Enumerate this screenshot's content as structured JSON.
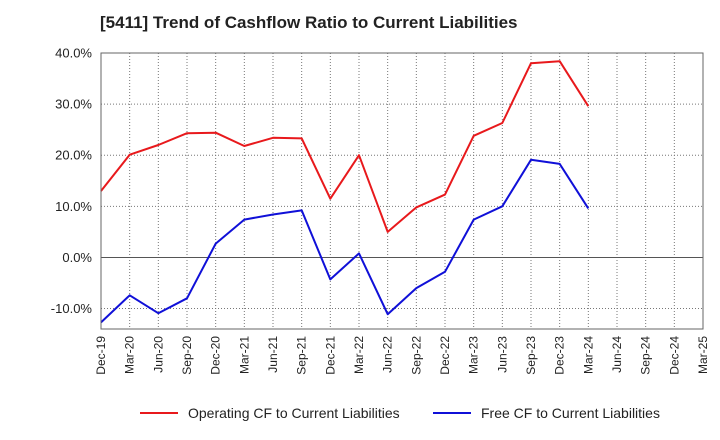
{
  "chart_data": {
    "type": "line",
    "title": "[5411]  Trend of Cashflow Ratio to Current Liabilities",
    "x": [
      "Dec-19",
      "Mar-20",
      "Jun-20",
      "Sep-20",
      "Dec-20",
      "Mar-21",
      "Jun-21",
      "Sep-21",
      "Dec-21",
      "Mar-22",
      "Jun-22",
      "Sep-22",
      "Dec-22",
      "Mar-23",
      "Jun-23",
      "Sep-23",
      "Dec-23",
      "Mar-24",
      "Jun-24",
      "Sep-24",
      "Dec-24",
      "Mar-25"
    ],
    "ylim": [
      -14,
      40
    ],
    "yticks": [
      40,
      30,
      20,
      10,
      0,
      -10
    ],
    "ytick_labels": [
      "40.0%",
      "30.0%",
      "20.0%",
      "10.0%",
      "0.0%",
      "-10.0%"
    ],
    "grid": true,
    "legend_position": "bottom",
    "series": [
      {
        "name": "Operating CF to Current Liabilities",
        "color": "#e8191c",
        "values": [
          13.0,
          20.1,
          22.0,
          24.3,
          24.4,
          21.8,
          23.4,
          23.3,
          11.5,
          20.0,
          5.0,
          9.8,
          12.3,
          23.8,
          26.3,
          38.0,
          38.4,
          29.6,
          null,
          null,
          null,
          null
        ]
      },
      {
        "name": "Free CF to Current Liabilities",
        "color": "#1010d8",
        "values": [
          -12.7,
          -7.4,
          -10.9,
          -8.0,
          2.7,
          7.4,
          8.4,
          9.2,
          -4.3,
          0.8,
          -11.1,
          -6.0,
          -2.8,
          7.4,
          10.0,
          19.1,
          18.3,
          9.6,
          null,
          null,
          null,
          null
        ]
      }
    ]
  }
}
